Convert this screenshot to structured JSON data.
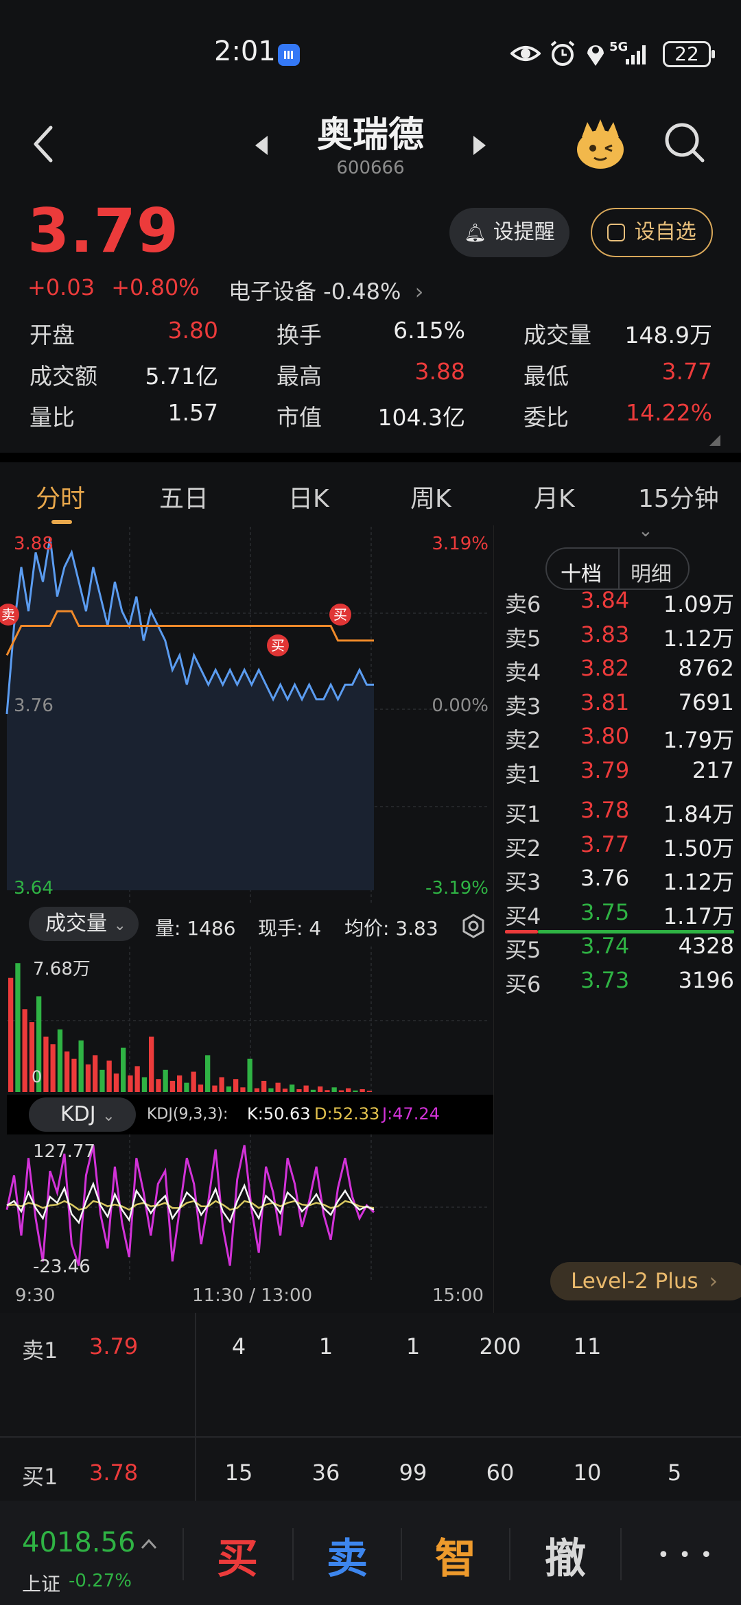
{
  "status_bar": {
    "time": "2:01",
    "network": "5G",
    "battery": "22"
  },
  "header": {
    "name": "奥瑞德",
    "code": "600666"
  },
  "quote": {
    "price": "3.79",
    "change": "+0.03",
    "change_pct": "+0.80%",
    "sector": "电子设备 -0.48%",
    "alert_label": "设提醒",
    "watch_label": "设自选",
    "stats": [
      {
        "k": "开盘",
        "v": "3.80",
        "color": "#ec3b3b"
      },
      {
        "k": "换手",
        "v": "6.15%",
        "color": "#ececec"
      },
      {
        "k": "成交量",
        "v": "148.9万",
        "color": "#ececec"
      },
      {
        "k": "成交额",
        "v": "5.71亿",
        "color": "#ececec"
      },
      {
        "k": "最高",
        "v": "3.88",
        "color": "#ec3b3b"
      },
      {
        "k": "最低",
        "v": "3.77",
        "color": "#ec3b3b"
      },
      {
        "k": "量比",
        "v": "1.57",
        "color": "#ececec"
      },
      {
        "k": "市值",
        "v": "104.3亿",
        "color": "#ececec"
      },
      {
        "k": "委比",
        "v": "14.22%",
        "color": "#ec3b3b"
      }
    ]
  },
  "tabs": [
    "分时",
    "五日",
    "日K",
    "周K",
    "月K",
    "15分钟"
  ],
  "chart_data": [
    {
      "type": "line",
      "y_left_labels": [
        "3.88",
        "3.76",
        "3.64"
      ],
      "y_right_labels": [
        "3.19%",
        "0.00%",
        "-3.19%"
      ],
      "x_labels": [
        "9:30",
        "11:30 / 13:00",
        "15:00"
      ],
      "ylim": [
        3.64,
        3.88
      ],
      "series": [
        {
          "values": [
            3.76,
            3.82,
            3.86,
            3.83,
            3.87,
            3.85,
            3.88,
            3.84,
            3.86,
            3.87,
            3.85,
            3.83,
            3.86,
            3.84,
            3.82,
            3.85,
            3.83,
            3.82,
            3.84,
            3.81,
            3.83,
            3.82,
            3.81,
            3.79,
            3.8,
            3.78,
            3.8,
            3.79,
            3.78,
            3.79,
            3.78,
            3.79,
            3.78,
            3.79,
            3.78,
            3.79,
            3.78,
            3.77,
            3.78,
            3.77,
            3.78,
            3.77,
            3.78,
            3.77,
            3.77,
            3.78,
            3.77,
            3.78,
            3.78,
            3.79,
            3.78,
            3.78
          ]
        },
        {
          "values": [
            3.8,
            3.81,
            3.82,
            3.82,
            3.82,
            3.82,
            3.82,
            3.83,
            3.83,
            3.83,
            3.82,
            3.82,
            3.82,
            3.82,
            3.82,
            3.82,
            3.82,
            3.82,
            3.82,
            3.82,
            3.82,
            3.82,
            3.82,
            3.82,
            3.82,
            3.82,
            3.82,
            3.82,
            3.82,
            3.82,
            3.82,
            3.82,
            3.82,
            3.82,
            3.82,
            3.82,
            3.82,
            3.82,
            3.82,
            3.82,
            3.82,
            3.82,
            3.82,
            3.82,
            3.82,
            3.82,
            3.81,
            3.81,
            3.81,
            3.81,
            3.81,
            3.81
          ]
        }
      ],
      "annotations": [
        "买",
        "买",
        "卖"
      ]
    },
    {
      "type": "bar",
      "title": "成交量",
      "max_label": "7.68万",
      "min_label": "0",
      "readout": {
        "vol": "量: 1486",
        "hand": "现手: 4",
        "avg": "均价: 3.83"
      },
      "ylim": [
        0,
        76800
      ],
      "values": [
        62000,
        70000,
        45000,
        38000,
        52000,
        30000,
        26000,
        34000,
        22000,
        18000,
        28000,
        15000,
        20000,
        12000,
        17000,
        10000,
        24000,
        9000,
        14000,
        8000,
        30000,
        7000,
        12000,
        6000,
        9000,
        5000,
        11000,
        4000,
        20000,
        3500,
        8000,
        3000,
        7000,
        2500,
        18000,
        2000,
        6000,
        2000,
        5000,
        1800,
        4000,
        1500,
        3500,
        1200,
        3000,
        1000,
        2500,
        900,
        2000,
        800,
        1500,
        600
      ],
      "colors_up": "#ec3b3b",
      "colors_down": "#2fb344"
    },
    {
      "type": "line",
      "title": "KDJ",
      "params": "KDJ(9,3,3):",
      "k": "K:50.63",
      "d": "D:52.33",
      "j": "J:47.24",
      "max_label": "127.77",
      "min_label": "-23.46",
      "ylim": [
        -23.46,
        127.77
      ],
      "series": [
        {
          "values": [
            55,
            60,
            48,
            70,
            52,
            40,
            65,
            58,
            75,
            45,
            35,
            60,
            80,
            55,
            42,
            68,
            50,
            38,
            72,
            60,
            46,
            58,
            66,
            40,
            52,
            70,
            62,
            44,
            56,
            74,
            48,
            36,
            60,
            78,
            54,
            40,
            66,
            58,
            46,
            70,
            62,
            48,
            56,
            68,
            52,
            44,
            60,
            72,
            58,
            50,
            54,
            50
          ]
        },
        {
          "values": [
            55,
            56,
            54,
            58,
            56,
            52,
            55,
            56,
            60,
            56,
            50,
            52,
            60,
            58,
            54,
            56,
            54,
            50,
            56,
            58,
            54,
            55,
            58,
            52,
            52,
            58,
            60,
            54,
            54,
            60,
            56,
            50,
            52,
            60,
            58,
            52,
            56,
            58,
            54,
            58,
            60,
            56,
            55,
            58,
            56,
            52,
            54,
            60,
            58,
            54,
            53,
            52
          ]
        },
        {
          "values": [
            50,
            90,
            20,
            110,
            40,
            -10,
            95,
            70,
            115,
            10,
            -15,
            90,
            125,
            45,
            5,
            100,
            35,
            -5,
            110,
            70,
            20,
            80,
            95,
            -10,
            50,
            110,
            80,
            10,
            60,
            120,
            30,
            -15,
            85,
            125,
            50,
            0,
            100,
            70,
            20,
            110,
            80,
            30,
            60,
            100,
            45,
            15,
            75,
            110,
            65,
            40,
            55,
            47
          ]
        }
      ]
    }
  ],
  "orderbook": {
    "toggle": [
      "十档",
      "明细"
    ],
    "asks": [
      {
        "label": "卖6",
        "price": "3.84",
        "vol": "1.09万",
        "color": "#ec3b3b"
      },
      {
        "label": "卖5",
        "price": "3.83",
        "vol": "1.12万",
        "color": "#ec3b3b"
      },
      {
        "label": "卖4",
        "price": "3.82",
        "vol": "8762",
        "color": "#ec3b3b"
      },
      {
        "label": "卖3",
        "price": "3.81",
        "vol": "7691",
        "color": "#ec3b3b"
      },
      {
        "label": "卖2",
        "price": "3.80",
        "vol": "1.79万",
        "color": "#ec3b3b"
      },
      {
        "label": "卖1",
        "price": "3.79",
        "vol": "217",
        "color": "#ec3b3b"
      }
    ],
    "bids": [
      {
        "label": "买1",
        "price": "3.78",
        "vol": "1.84万",
        "color": "#ec3b3b"
      },
      {
        "label": "买2",
        "price": "3.77",
        "vol": "1.50万",
        "color": "#ec3b3b"
      },
      {
        "label": "买3",
        "price": "3.76",
        "vol": "1.12万",
        "color": "#ececec"
      },
      {
        "label": "买4",
        "price": "3.75",
        "vol": "1.17万",
        "color": "#2fb344"
      },
      {
        "label": "买5",
        "price": "3.74",
        "vol": "4328",
        "color": "#2fb344"
      },
      {
        "label": "买6",
        "price": "3.73",
        "vol": "3196",
        "color": "#2fb344"
      }
    ],
    "level2": "Level-2 Plus"
  },
  "transactions": {
    "sell": {
      "label": "卖1",
      "price": "3.79",
      "qty": [
        "4",
        "1",
        "1",
        "200",
        "11"
      ]
    },
    "buy": {
      "label": "买1",
      "price": "3.78",
      "qty": [
        "15",
        "36",
        "99",
        "60",
        "10",
        "5"
      ]
    }
  },
  "bottom": {
    "index_value": "4018.56",
    "index_name": "上证",
    "index_change": "-0.27%",
    "actions": [
      "买",
      "卖",
      "智",
      "撤"
    ],
    "more": "• • •"
  }
}
